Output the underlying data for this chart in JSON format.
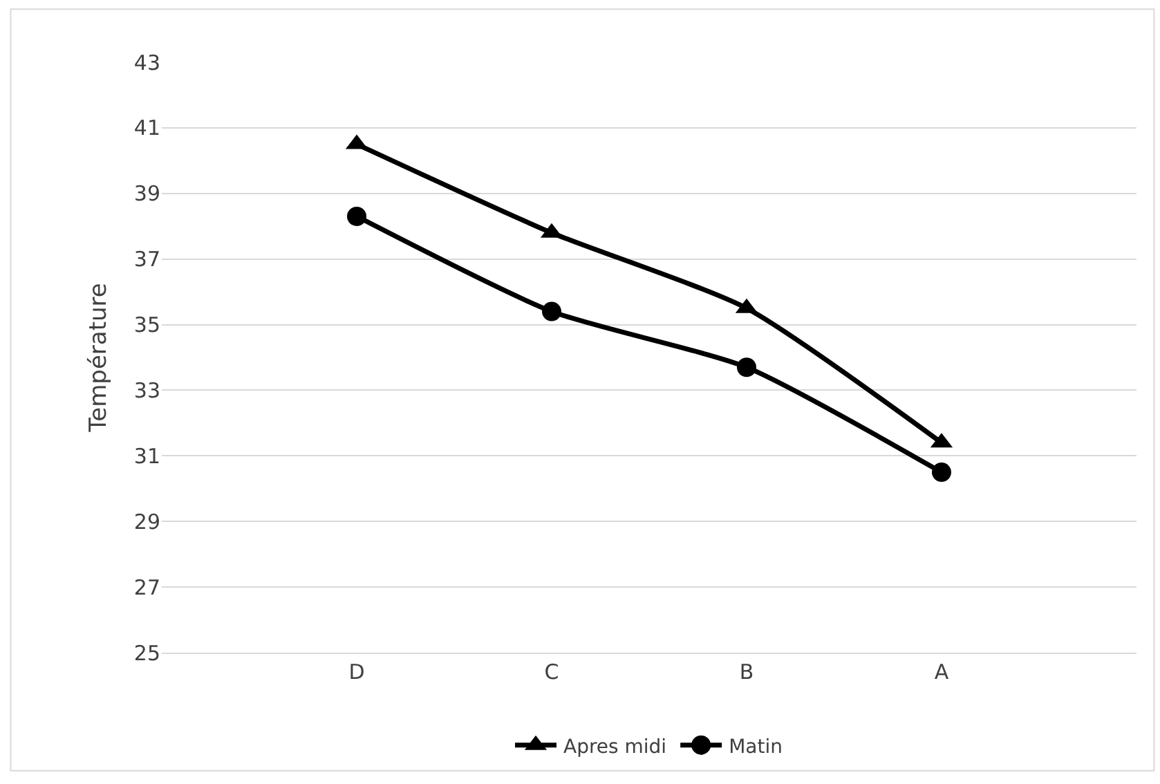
{
  "chart_data": {
    "type": "line",
    "ylabel": "Température",
    "categories": [
      "D",
      "C",
      "B",
      "A"
    ],
    "series": [
      {
        "name": "Apres midi",
        "color": "#000000",
        "marker": "triangle",
        "values": [
          40.5,
          37.8,
          35.5,
          31.4
        ]
      },
      {
        "name": "Matin",
        "color": "#000000",
        "marker": "circle",
        "values": [
          38.3,
          35.4,
          33.7,
          30.5
        ]
      }
    ],
    "ylim": [
      25,
      43
    ],
    "yticks": [
      25,
      27,
      29,
      31,
      33,
      35,
      37,
      39,
      41,
      43
    ],
    "grid": "y",
    "legend": "bottom",
    "line_style": "solid"
  }
}
